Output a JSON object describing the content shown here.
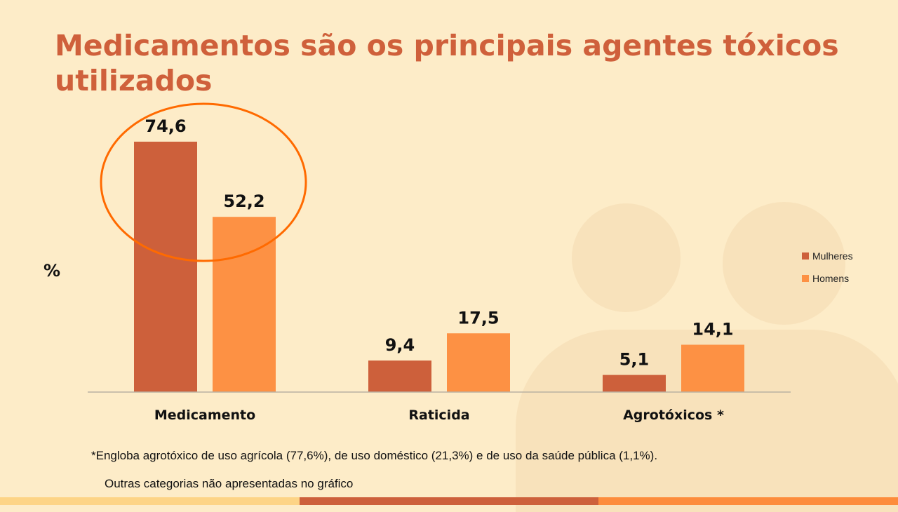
{
  "slide": {
    "title": "Medicamentos são os principais agentes tóxicos utilizados",
    "footnote": "*Engloba agrotóxico de uso agrícola (77,6%), de uso doméstico (21,3%) e de uso da saúde pública (1,1%).",
    "note": "Outras categorias não apresentadas no gráfico",
    "highlight": "Medicamento",
    "colors": {
      "title": "#cf603b",
      "mulheres": "#cd603b",
      "homens": "#fd9144",
      "highlight_ring": "#ff6a00",
      "bottom_bar": [
        "#fdd486",
        "#cd603b",
        "#fd8c3c"
      ]
    }
  },
  "chart_data": {
    "type": "bar",
    "ylabel": "%",
    "categories": [
      "Medicamento",
      "Raticida",
      "Agrotóxicos *"
    ],
    "series": [
      {
        "name": "Mulheres",
        "values": [
          74.6,
          9.4,
          5.1
        ],
        "labels": [
          "74,6",
          "9,4",
          "5,1"
        ]
      },
      {
        "name": "Homens",
        "values": [
          52.2,
          17.5,
          14.1
        ],
        "labels": [
          "52,2",
          "17,5",
          "14,1"
        ]
      }
    ],
    "ylim": [
      0,
      80
    ],
    "grid": false,
    "legend": "right"
  }
}
